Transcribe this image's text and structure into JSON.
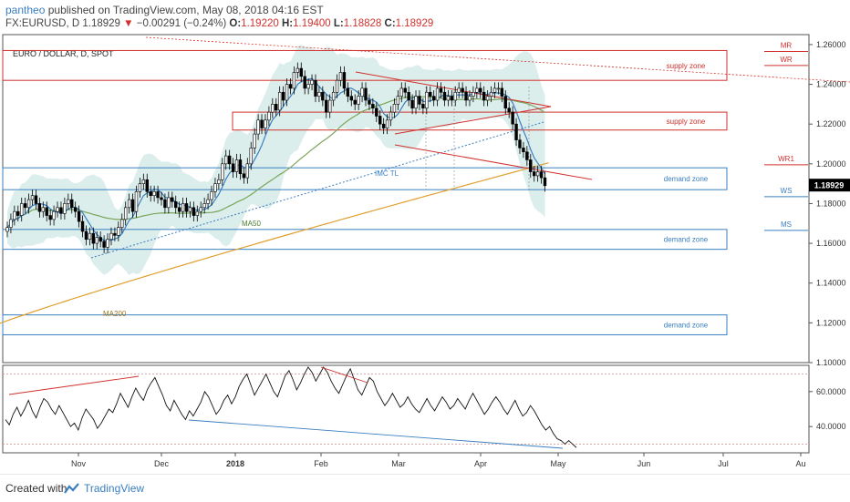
{
  "header": {
    "author": "pantheo",
    "published": "published on TradingView.com, May 08, 2018 04:16 EST",
    "symbol": "FX:EURUSD, D",
    "last": "1.18929",
    "change_arrow": "▼",
    "change": "−0.00291 (−0.24%)",
    "open_label": "O:",
    "open": "1.19220",
    "high_label": "H:",
    "high": "1.19400",
    "low_label": "L:",
    "low": "1.18828",
    "close_label": "C:",
    "close": "1.18929"
  },
  "footer": {
    "created_with": "Created with",
    "brand": "TradingView"
  },
  "colors": {
    "up": "#ffffff",
    "down": "#000000",
    "supply": "#d0312d",
    "demand": "#3a7fc1",
    "ma200": "#e0a030",
    "ma50": "#7aa55a",
    "bands": "#cfe8e6",
    "price_tag": "#000000"
  },
  "chart_data": [
    {
      "type": "candlestick",
      "title": "EURO / DOLLAR, D, SPOT",
      "ylim": [
        1.1,
        1.265
      ],
      "yticks": [
        1.26,
        1.24,
        1.22,
        1.2,
        1.18,
        1.16,
        1.14,
        1.12,
        1.1
      ],
      "ytick_labels": [
        "1.26000",
        "1.24000",
        "1.22000",
        "1.20000",
        "1.18000",
        "1.16000",
        "1.14000",
        "1.12000",
        "1.10000"
      ],
      "xtick_labels": [
        "Nov",
        "Dec",
        "2018",
        "Feb",
        "Mar",
        "Apr",
        "May",
        "Jun",
        "Jul",
        "Au"
      ],
      "close_series": [
        1.168,
        1.172,
        1.176,
        1.174,
        1.18,
        1.178,
        1.182,
        1.184,
        1.18,
        1.176,
        1.178,
        1.174,
        1.172,
        1.176,
        1.178,
        1.175,
        1.18,
        1.182,
        1.178,
        1.176,
        1.171,
        1.166,
        1.162,
        1.165,
        1.16,
        1.163,
        1.161,
        1.158,
        1.162,
        1.165,
        1.164,
        1.168,
        1.172,
        1.178,
        1.182,
        1.176,
        1.186,
        1.19,
        1.192,
        1.186,
        1.184,
        1.186,
        1.183,
        1.182,
        1.178,
        1.183,
        1.181,
        1.178,
        1.176,
        1.18,
        1.176,
        1.178,
        1.174,
        1.176,
        1.178,
        1.18,
        1.182,
        1.186,
        1.19,
        1.192,
        1.2,
        1.204,
        1.2,
        1.196,
        1.202,
        1.195,
        1.193,
        1.2,
        1.208,
        1.215,
        1.222,
        1.218,
        1.222,
        1.226,
        1.23,
        1.227,
        1.236,
        1.232,
        1.24,
        1.238,
        1.246,
        1.248,
        1.244,
        1.238,
        1.24,
        1.242,
        1.234,
        1.236,
        1.232,
        1.226,
        1.232,
        1.236,
        1.242,
        1.246,
        1.238,
        1.234,
        1.232,
        1.23,
        1.234,
        1.238,
        1.232,
        1.23,
        1.228,
        1.224,
        1.22,
        1.218,
        1.222,
        1.226,
        1.23,
        1.234,
        1.238,
        1.236,
        1.232,
        1.228,
        1.234,
        1.23,
        1.228,
        1.236,
        1.234,
        1.232,
        1.238,
        1.236,
        1.232,
        1.234,
        1.232,
        1.236,
        1.238,
        1.236,
        1.232,
        1.234,
        1.236,
        1.238,
        1.236,
        1.232,
        1.234,
        1.236,
        1.238,
        1.238,
        1.234,
        1.228,
        1.226,
        1.22,
        1.212,
        1.208,
        1.206,
        1.202,
        1.196,
        1.194,
        1.196,
        1.193,
        1.189
      ],
      "price_tag": "1.18929",
      "zones": [
        {
          "label": "supply zone",
          "top": 1.257,
          "bottom": 1.242,
          "kind": "supply"
        },
        {
          "label": "supply zone",
          "top": 1.226,
          "bottom": 1.217,
          "kind": "supply"
        },
        {
          "label": "demand zone",
          "top": 1.198,
          "bottom": 1.187,
          "kind": "demand"
        },
        {
          "label": "demand zone",
          "top": 1.167,
          "bottom": 1.157,
          "kind": "demand"
        },
        {
          "label": "demand zone",
          "top": 1.124,
          "bottom": 1.114,
          "kind": "demand"
        }
      ],
      "levels": [
        {
          "label": "MR",
          "value": 1.2565,
          "kind": "supply"
        },
        {
          "label": "WR",
          "value": 1.2495,
          "kind": "supply"
        },
        {
          "label": "WR1",
          "value": 1.1995,
          "kind": "supply"
        },
        {
          "label": "WS",
          "value": 1.1835,
          "kind": "demand"
        },
        {
          "label": "MS",
          "value": 1.1665,
          "kind": "demand"
        }
      ],
      "annotations": [
        "MA50",
        "MA200",
        "IMC TL"
      ]
    },
    {
      "type": "line",
      "name": "oscillator",
      "ylim": [
        25,
        75
      ],
      "yticks": [
        60,
        40
      ],
      "ytick_labels": [
        "60.0000",
        "40.0000"
      ],
      "values": [
        44,
        41,
        47,
        51,
        46,
        50,
        55,
        49,
        45,
        51,
        56,
        54,
        50,
        47,
        52,
        48,
        44,
        40,
        42,
        38,
        45,
        50,
        47,
        44,
        39,
        42,
        46,
        50,
        48,
        53,
        59,
        55,
        51,
        57,
        62,
        58,
        55,
        61,
        65,
        68,
        63,
        58,
        52,
        49,
        55,
        51,
        47,
        44,
        49,
        46,
        50,
        54,
        60,
        57,
        52,
        47,
        50,
        55,
        58,
        53,
        57,
        63,
        67,
        70,
        64,
        58,
        62,
        66,
        70,
        65,
        60,
        57,
        63,
        69,
        72,
        67,
        61,
        65,
        70,
        74,
        71,
        66,
        70,
        74,
        71,
        66,
        62,
        59,
        64,
        69,
        73,
        67,
        61,
        58,
        63,
        68,
        66,
        60,
        56,
        52,
        55,
        59,
        55,
        51,
        53,
        57,
        53,
        50,
        48,
        52,
        56,
        52,
        49,
        53,
        57,
        54,
        50,
        52,
        56,
        53,
        50,
        55,
        59,
        55,
        51,
        47,
        50,
        54,
        57,
        54,
        50,
        47,
        51,
        55,
        50,
        46,
        48,
        52,
        49,
        45,
        41,
        38,
        40,
        36,
        33,
        32,
        30,
        32,
        30,
        28
      ]
    }
  ]
}
